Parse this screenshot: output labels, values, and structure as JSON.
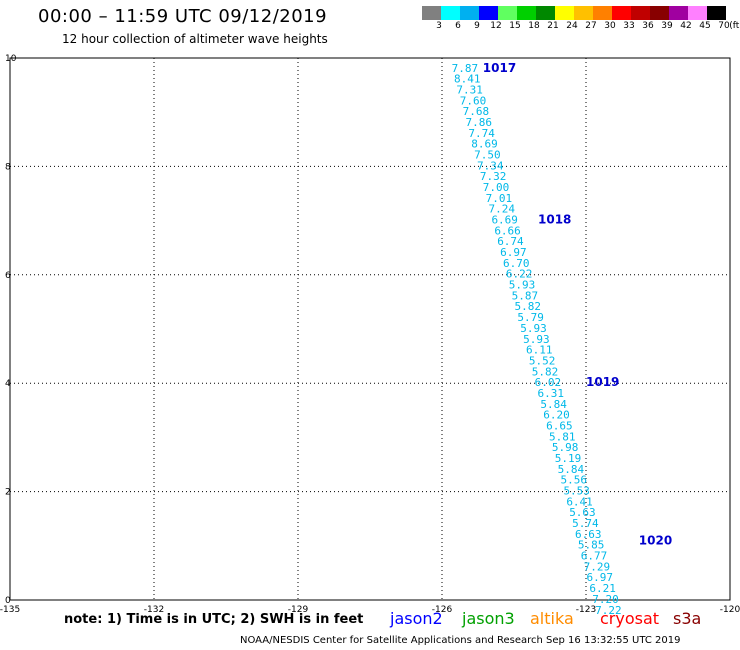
{
  "header": {
    "title": "00:00 – 11:59 UTC 09/12/2019",
    "subtitle": "12 hour collection of altimeter wave heights"
  },
  "colorbar": {
    "colors": [
      "#808080",
      "#00ffff",
      "#00b0f0",
      "#0000ff",
      "#60ff60",
      "#00d000",
      "#008800",
      "#ffff00",
      "#ffc000",
      "#ff8000",
      "#ff0000",
      "#c00000",
      "#880000",
      "#a000a0",
      "#ff80ff",
      "#000000"
    ],
    "labels": [
      "3",
      "6",
      "9",
      "12",
      "15",
      "18",
      "21",
      "24",
      "27",
      "30",
      "33",
      "36",
      "39",
      "42",
      "45",
      "70",
      "(ft)"
    ]
  },
  "axes": {
    "x_ticks": [
      "-135",
      "-132",
      "-129",
      "-126",
      "-123",
      "-120"
    ],
    "y_ticks": [
      "0",
      "2",
      "4",
      "6",
      "8",
      "10"
    ]
  },
  "chart_data": {
    "type": "scatter",
    "title": "00:00 – 11:59 UTC 09/12/2019",
    "subtitle": "12 hour collection of altimeter wave heights",
    "xlim": [
      -135,
      -120
    ],
    "ylim": [
      0,
      10
    ],
    "grid": true,
    "swh_color": "#00b8e8",
    "swh": [
      {
        "lon": -125.8,
        "lat": 9.82,
        "v": "7.87"
      },
      {
        "lon": -125.75,
        "lat": 9.62,
        "v": "8.41"
      },
      {
        "lon": -125.7,
        "lat": 9.42,
        "v": "7.31"
      },
      {
        "lon": -125.63,
        "lat": 9.22,
        "v": "7.60"
      },
      {
        "lon": -125.57,
        "lat": 9.02,
        "v": "7.68"
      },
      {
        "lon": -125.51,
        "lat": 8.82,
        "v": "7.86"
      },
      {
        "lon": -125.45,
        "lat": 8.62,
        "v": "7.74"
      },
      {
        "lon": -125.39,
        "lat": 8.42,
        "v": "8.69"
      },
      {
        "lon": -125.33,
        "lat": 8.22,
        "v": "7.50"
      },
      {
        "lon": -125.27,
        "lat": 8.02,
        "v": "7.34"
      },
      {
        "lon": -125.21,
        "lat": 7.82,
        "v": "7.32"
      },
      {
        "lon": -125.15,
        "lat": 7.62,
        "v": "7.00"
      },
      {
        "lon": -125.09,
        "lat": 7.42,
        "v": "7.01"
      },
      {
        "lon": -125.03,
        "lat": 7.22,
        "v": "7.24"
      },
      {
        "lon": -124.97,
        "lat": 7.02,
        "v": "6.69"
      },
      {
        "lon": -124.91,
        "lat": 6.82,
        "v": "6.66"
      },
      {
        "lon": -124.85,
        "lat": 6.62,
        "v": "6.74"
      },
      {
        "lon": -124.79,
        "lat": 6.42,
        "v": "6.97"
      },
      {
        "lon": -124.73,
        "lat": 6.22,
        "v": "6.70"
      },
      {
        "lon": -124.67,
        "lat": 6.02,
        "v": "6.22"
      },
      {
        "lon": -124.61,
        "lat": 5.82,
        "v": "5.93"
      },
      {
        "lon": -124.55,
        "lat": 5.62,
        "v": "5.87"
      },
      {
        "lon": -124.49,
        "lat": 5.42,
        "v": "5.82"
      },
      {
        "lon": -124.43,
        "lat": 5.22,
        "v": "5.79"
      },
      {
        "lon": -124.37,
        "lat": 5.02,
        "v": "5.93"
      },
      {
        "lon": -124.31,
        "lat": 4.82,
        "v": "5.93"
      },
      {
        "lon": -124.25,
        "lat": 4.62,
        "v": "6.11"
      },
      {
        "lon": -124.19,
        "lat": 4.42,
        "v": "5.52"
      },
      {
        "lon": -124.13,
        "lat": 4.22,
        "v": "5.82"
      },
      {
        "lon": -124.07,
        "lat": 4.02,
        "v": "6.02"
      },
      {
        "lon": -124.01,
        "lat": 3.82,
        "v": "6.31"
      },
      {
        "lon": -123.95,
        "lat": 3.62,
        "v": "5.84"
      },
      {
        "lon": -123.89,
        "lat": 3.42,
        "v": "6.20"
      },
      {
        "lon": -123.83,
        "lat": 3.22,
        "v": "6.65"
      },
      {
        "lon": -123.77,
        "lat": 3.02,
        "v": "5.81"
      },
      {
        "lon": -123.71,
        "lat": 2.82,
        "v": "5.98"
      },
      {
        "lon": -123.65,
        "lat": 2.62,
        "v": "5.19"
      },
      {
        "lon": -123.59,
        "lat": 2.42,
        "v": "5.84"
      },
      {
        "lon": -123.53,
        "lat": 2.22,
        "v": "5.56"
      },
      {
        "lon": -123.47,
        "lat": 2.02,
        "v": "5.53"
      },
      {
        "lon": -123.41,
        "lat": 1.82,
        "v": "6.41"
      },
      {
        "lon": -123.35,
        "lat": 1.62,
        "v": "5.63"
      },
      {
        "lon": -123.29,
        "lat": 1.42,
        "v": "5.74"
      },
      {
        "lon": -123.23,
        "lat": 1.22,
        "v": "6.63"
      },
      {
        "lon": -123.17,
        "lat": 1.02,
        "v": "5.85"
      },
      {
        "lon": -123.11,
        "lat": 0.82,
        "v": "6.77"
      },
      {
        "lon": -123.05,
        "lat": 0.62,
        "v": "7.29"
      },
      {
        "lon": -122.99,
        "lat": 0.42,
        "v": "6.97"
      },
      {
        "lon": -122.93,
        "lat": 0.22,
        "v": "6.21"
      },
      {
        "lon": -122.87,
        "lat": 0.02,
        "v": "7.20"
      },
      {
        "lon": -122.81,
        "lat": -0.18,
        "v": "7.22"
      }
    ],
    "time_labels": [
      {
        "lon": -125.15,
        "lat": 9.82,
        "v": "1017"
      },
      {
        "lon": -124.0,
        "lat": 7.02,
        "v": "1018"
      },
      {
        "lon": -123.0,
        "lat": 4.02,
        "v": "1019"
      },
      {
        "lon": -121.9,
        "lat": 1.1,
        "v": "1020"
      }
    ]
  },
  "footer": {
    "note": "note: 1) Time is in UTC; 2) SWH is in feet",
    "satellites": [
      {
        "name": "jason2",
        "color": "#0000ff"
      },
      {
        "name": "jason3",
        "color": "#00a000"
      },
      {
        "name": "altika",
        "color": "#ff8c00"
      },
      {
        "name": "cryosat",
        "color": "#ff0000"
      },
      {
        "name": "s3a",
        "color": "#880000"
      }
    ],
    "credit": "NOAA/NESDIS Center for Satellite Applications and Research   Sep 16 13:32:55 UTC 2019"
  }
}
